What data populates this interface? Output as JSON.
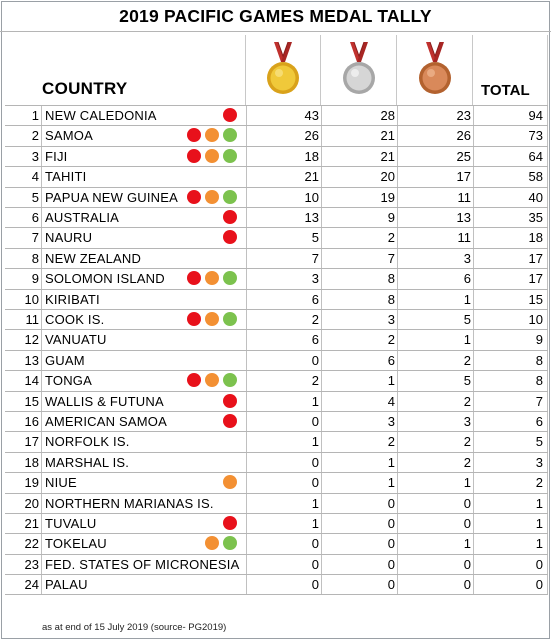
{
  "title": "2019 PACIFIC GAMES MEDAL TALLY",
  "headers": {
    "country": "COUNTRY",
    "total": "TOTAL"
  },
  "medal_icons": [
    "gold-medal-icon",
    "silver-medal-icon",
    "bronze-medal-icon"
  ],
  "colors": {
    "gold": "#e6b422",
    "silver": "#c4c4c4",
    "bronze": "#c8784a",
    "ribbon": "#c0312e",
    "dot_red": "#e8111b",
    "dot_orange": "#f39033",
    "dot_green": "#7cc24e"
  },
  "rows": [
    {
      "rank": "1",
      "country": "NEW CALEDONIA",
      "gold": "43",
      "silver": "28",
      "bronze": "23",
      "total": "94",
      "dots": [
        "red"
      ]
    },
    {
      "rank": "2",
      "country": "SAMOA",
      "gold": "26",
      "silver": "21",
      "bronze": "26",
      "total": "73",
      "dots": [
        "red",
        "orange",
        "green"
      ]
    },
    {
      "rank": "3",
      "country": "FIJI",
      "gold": "18",
      "silver": "21",
      "bronze": "25",
      "total": "64",
      "dots": [
        "red",
        "orange",
        "green"
      ]
    },
    {
      "rank": "4",
      "country": "TAHITI",
      "gold": "21",
      "silver": "20",
      "bronze": "17",
      "total": "58",
      "dots": []
    },
    {
      "rank": "5",
      "country": "PAPUA NEW GUINEA",
      "gold": "10",
      "silver": "19",
      "bronze": "11",
      "total": "40",
      "dots": [
        "red",
        "orange",
        "green"
      ]
    },
    {
      "rank": "6",
      "country": "AUSTRALIA",
      "gold": "13",
      "silver": "9",
      "bronze": "13",
      "total": "35",
      "dots": [
        "red"
      ]
    },
    {
      "rank": "7",
      "country": "NAURU",
      "gold": "5",
      "silver": "2",
      "bronze": "11",
      "total": "18",
      "dots": [
        "red"
      ]
    },
    {
      "rank": "8",
      "country": "NEW ZEALAND",
      "gold": "7",
      "silver": "7",
      "bronze": "3",
      "total": "17",
      "dots": []
    },
    {
      "rank": "9",
      "country": "SOLOMON ISLAND",
      "gold": "3",
      "silver": "8",
      "bronze": "6",
      "total": "17",
      "dots": [
        "red",
        "orange",
        "green"
      ]
    },
    {
      "rank": "10",
      "country": "KIRIBATI",
      "gold": "6",
      "silver": "8",
      "bronze": "1",
      "total": "15",
      "dots": []
    },
    {
      "rank": "11",
      "country": "COOK IS.",
      "gold": "2",
      "silver": "3",
      "bronze": "5",
      "total": "10",
      "dots": [
        "red",
        "orange",
        "green"
      ]
    },
    {
      "rank": "12",
      "country": "VANUATU",
      "gold": "6",
      "silver": "2",
      "bronze": "1",
      "total": "9",
      "dots": []
    },
    {
      "rank": "13",
      "country": "GUAM",
      "gold": "0",
      "silver": "6",
      "bronze": "2",
      "total": "8",
      "dots": []
    },
    {
      "rank": "14",
      "country": "TONGA",
      "gold": "2",
      "silver": "1",
      "bronze": "5",
      "total": "8",
      "dots": [
        "red",
        "orange",
        "green"
      ]
    },
    {
      "rank": "15",
      "country": "WALLIS & FUTUNA",
      "gold": "1",
      "silver": "4",
      "bronze": "2",
      "total": "7",
      "dots": [
        "red"
      ]
    },
    {
      "rank": "16",
      "country": "AMERICAN SAMOA",
      "gold": "0",
      "silver": "3",
      "bronze": "3",
      "total": "6",
      "dots": [
        "red"
      ]
    },
    {
      "rank": "17",
      "country": "NORFOLK IS.",
      "gold": "1",
      "silver": "2",
      "bronze": "2",
      "total": "5",
      "dots": []
    },
    {
      "rank": "18",
      "country": "MARSHAL IS.",
      "gold": "0",
      "silver": "1",
      "bronze": "2",
      "total": "3",
      "dots": []
    },
    {
      "rank": "19",
      "country": "NIUE",
      "gold": "0",
      "silver": "1",
      "bronze": "1",
      "total": "2",
      "dots": [
        "orange"
      ]
    },
    {
      "rank": "20",
      "country": "NORTHERN MARIANAS IS.",
      "gold": "1",
      "silver": "0",
      "bronze": "0",
      "total": "1",
      "dots": []
    },
    {
      "rank": "21",
      "country": "TUVALU",
      "gold": "1",
      "silver": "0",
      "bronze": "0",
      "total": "1",
      "dots": [
        "red"
      ]
    },
    {
      "rank": "22",
      "country": "TOKELAU",
      "gold": "0",
      "silver": "0",
      "bronze": "1",
      "total": "1",
      "dots": [
        "orange",
        "green"
      ]
    },
    {
      "rank": "23",
      "country": "FED. STATES OF MICRONESIA",
      "gold": "0",
      "silver": "0",
      "bronze": "0",
      "total": "0",
      "dots": []
    },
    {
      "rank": "24",
      "country": "PALAU",
      "gold": "0",
      "silver": "0",
      "bronze": "0",
      "total": "0",
      "dots": []
    }
  ],
  "footnote": "as at end of 15 July 2019 (source- PG2019)"
}
